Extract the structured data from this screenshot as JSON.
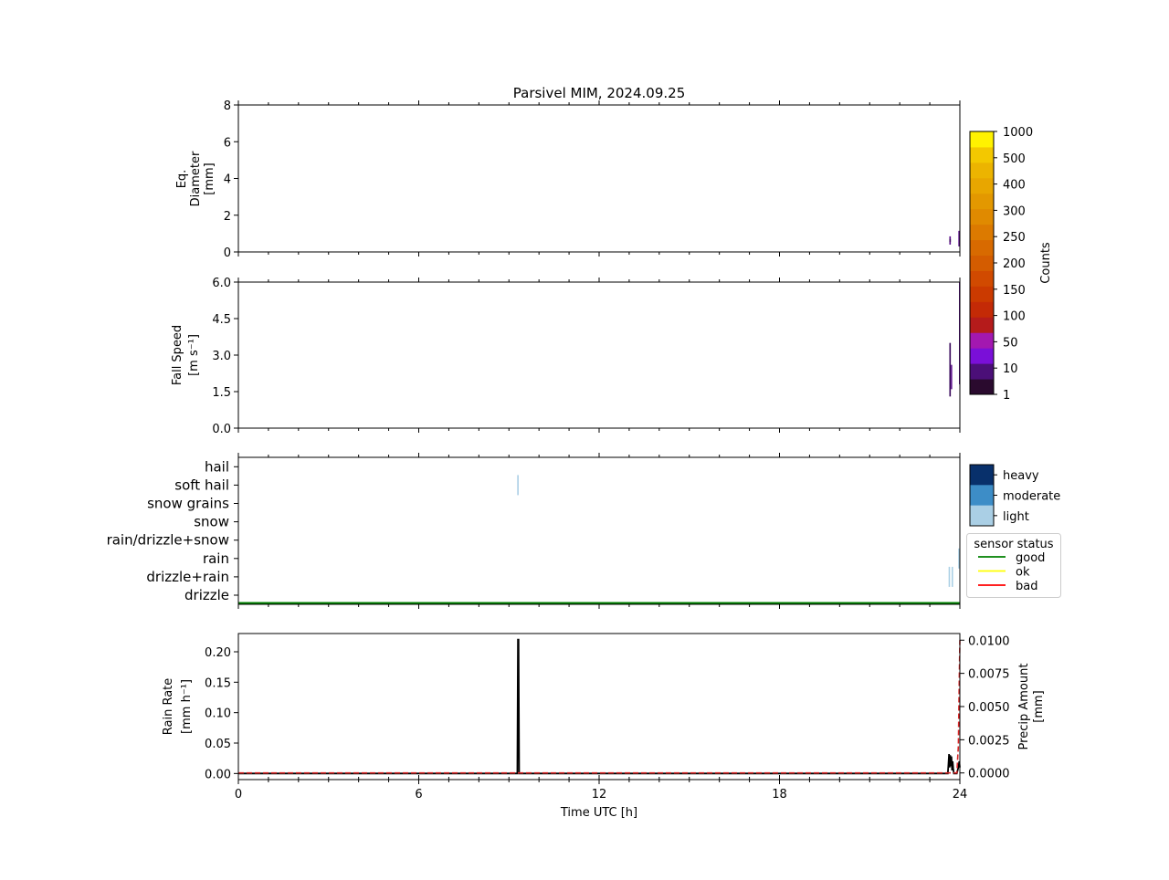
{
  "chart_data": [
    {
      "id": "diameter",
      "type": "heatmap",
      "title": "Parsivel MIM, 2024.09.25",
      "ylabel_lines": [
        "Eq.",
        "Diameter",
        "[mm]"
      ],
      "ylim": [
        0,
        8
      ],
      "yticks": [
        "0",
        "2",
        "4",
        "6",
        "8"
      ],
      "xlim": [
        0,
        24
      ],
      "colorbar": {
        "label": "Counts",
        "ticks": [
          "1",
          "10",
          "50",
          "100",
          "150",
          "200",
          "250",
          "300",
          "400",
          "500",
          "1000"
        ]
      },
      "cells": [
        {
          "t": [
            23.65,
            23.7
          ],
          "y": [
            0.4,
            0.85
          ],
          "color": "#5a0d8a"
        },
        {
          "t": [
            23.65,
            23.7
          ],
          "y": [
            0.55,
            0.7
          ],
          "color": "#3b0a5c"
        },
        {
          "t": [
            23.95,
            24.0
          ],
          "y": [
            0.3,
            1.15
          ],
          "color": "#5a0d8a"
        }
      ]
    },
    {
      "id": "fall-speed",
      "type": "heatmap",
      "ylabel_lines": [
        "Fall Speed",
        "[m s⁻¹]"
      ],
      "ylim": [
        0,
        6
      ],
      "yticks": [
        "0.0",
        "1.5",
        "3.0",
        "4.5",
        "6.0"
      ],
      "xlim": [
        0,
        24
      ],
      "cells": [
        {
          "t": [
            23.65,
            23.7
          ],
          "y": [
            1.3,
            3.5
          ],
          "color": "#3b0a5c"
        },
        {
          "t": [
            23.7,
            23.72
          ],
          "y": [
            1.6,
            2.6
          ],
          "color": "#5a0d8a"
        },
        {
          "t": [
            23.97,
            24.0
          ],
          "y": [
            1.8,
            6.0
          ],
          "color": "#5a0d8a"
        }
      ]
    },
    {
      "id": "precip-type",
      "type": "scatter",
      "categories": [
        "drizzle",
        "drizzle+rain",
        "rain",
        "rain/drizzle+snow",
        "snow",
        "snow grains",
        "soft hail",
        "hail"
      ],
      "xlim": [
        0,
        24
      ],
      "intensity_legend": [
        "heavy",
        "moderate",
        "light"
      ],
      "intensity_colors": {
        "heavy": "#08306b",
        "moderate": "#3d8dc7",
        "light": "#aacfe5"
      },
      "status_legend": {
        "title": "sensor status",
        "entries": [
          {
            "label": "good",
            "color": "#008000"
          },
          {
            "label": "ok",
            "color": "#ffff00"
          },
          {
            "label": "bad",
            "color": "#ff0000"
          }
        ]
      },
      "sensor_status": "good",
      "events": [
        {
          "t": 9.3,
          "category": "soft hail",
          "intensity": "light"
        },
        {
          "t": 23.65,
          "category": "drizzle+rain",
          "intensity": "light"
        },
        {
          "t": 23.75,
          "category": "drizzle+rain",
          "intensity": "light"
        },
        {
          "t": 23.97,
          "category": "rain",
          "intensity": "light"
        }
      ]
    },
    {
      "id": "rain-rate",
      "type": "line",
      "xlabel": "Time UTC [h]",
      "ylabel_lines": [
        "Rain Rate",
        "[mm h⁻¹]"
      ],
      "ylim": [
        -0.01,
        0.23
      ],
      "yticks": [
        "0.00",
        "0.05",
        "0.10",
        "0.15",
        "0.20"
      ],
      "y2label_lines": [
        "Precip Amount",
        "[mm]"
      ],
      "y2lim": [
        -0.0005,
        0.0105
      ],
      "y2ticks": [
        "0.0000",
        "0.0025",
        "0.0050",
        "0.0075",
        "0.0100"
      ],
      "xlim": [
        0,
        24
      ],
      "xticks": [
        "0",
        "6",
        "12",
        "18",
        "24"
      ],
      "series": [
        {
          "axis": "left",
          "color": "#000000",
          "style": "solid",
          "x": [
            0,
            9.28,
            9.3,
            9.32,
            9.34,
            23.6,
            23.62,
            23.64,
            23.66,
            23.68,
            23.7,
            23.72,
            23.74,
            23.76,
            23.78,
            23.8,
            23.9,
            23.95,
            23.98,
            24
          ],
          "y": [
            0,
            0,
            0.22,
            0.22,
            0,
            0,
            0.015,
            0.032,
            0.01,
            0.03,
            0.012,
            0.028,
            0.005,
            0.02,
            0.008,
            0,
            0,
            0.01,
            0.02,
            0.01
          ]
        },
        {
          "axis": "right",
          "color": "#d62728",
          "style": "dashed",
          "x": [
            0,
            23.9,
            23.95,
            23.98,
            24
          ],
          "y": [
            0,
            0,
            0.002,
            0.007,
            0.01
          ]
        }
      ]
    }
  ]
}
